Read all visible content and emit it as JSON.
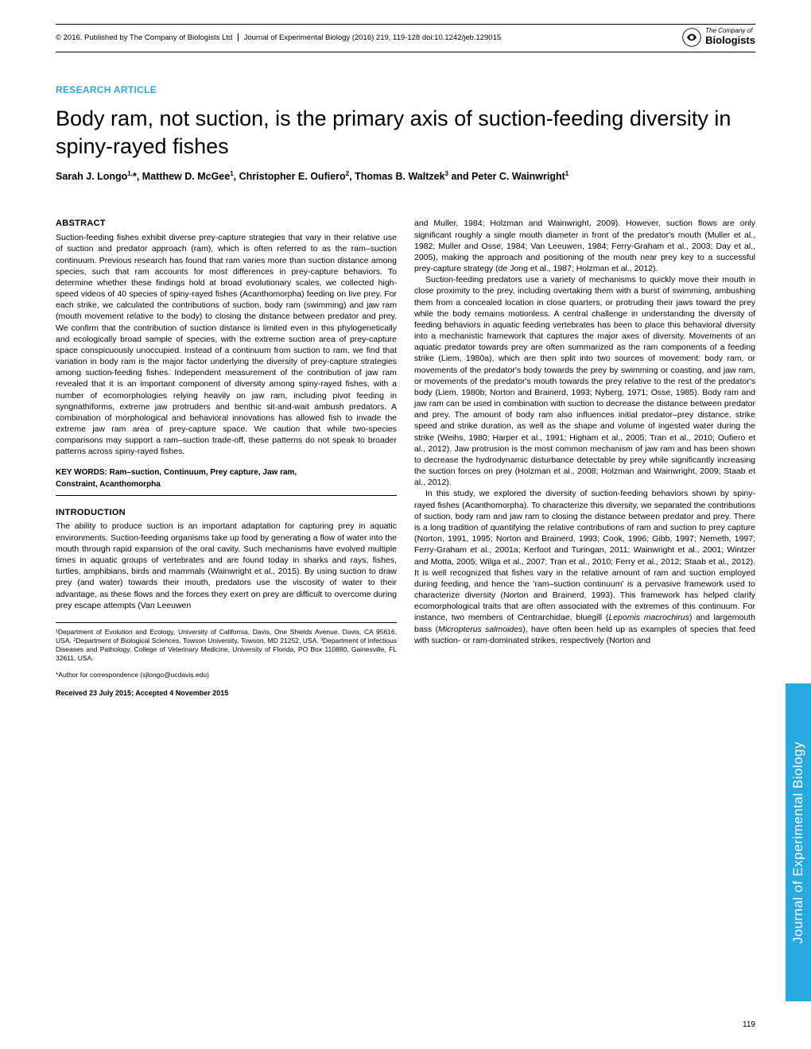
{
  "header": {
    "copyright": "© 2016. Published by The Company of Biologists Ltd",
    "journal": "Journal of Experimental Biology (2016) 219, 119-128 doi:10.1242/jeb.129015",
    "logo_company": "The Company of",
    "logo_biologists": "Biologists"
  },
  "article_type": "RESEARCH ARTICLE",
  "title": "Body ram, not suction, is the primary axis of suction-feeding diversity in spiny-rayed fishes",
  "authors_html": "Sarah J. Longo<sup>1,</sup>*, Matthew D. McGee<sup>1</sup>, Christopher E. Oufiero<sup>2</sup>, Thomas B. Waltzek<sup>3</sup> and Peter C. Wainwright<sup>1</sup>",
  "abstract_head": "ABSTRACT",
  "abstract_text": "Suction-feeding fishes exhibit diverse prey-capture strategies that vary in their relative use of suction and predator approach (ram), which is often referred to as the ram–suction continuum. Previous research has found that ram varies more than suction distance among species, such that ram accounts for most differences in prey-capture behaviors. To determine whether these findings hold at broad evolutionary scales, we collected high-speed videos of 40 species of spiny-rayed fishes (Acanthomorpha) feeding on live prey. For each strike, we calculated the contributions of suction, body ram (swimming) and jaw ram (mouth movement relative to the body) to closing the distance between predator and prey. We confirm that the contribution of suction distance is limited even in this phylogenetically and ecologically broad sample of species, with the extreme suction area of prey-capture space conspicuously unoccupied. Instead of a continuum from suction to ram, we find that variation in body ram is the major factor underlying the diversity of prey-capture strategies among suction-feeding fishes. Independent measurement of the contribution of jaw ram revealed that it is an important component of diversity among spiny-rayed fishes, with a number of ecomorphologies relying heavily on jaw ram, including pivot feeding in syngnathiforms, extreme jaw protruders and benthic sit-and-wait ambush predators. A combination of morphological and behavioral innovations has allowed fish to invade the extreme jaw ram area of prey-capture space. We caution that while two-species comparisons may support a ram–suction trade-off, these patterns do not speak to broader patterns across spiny-rayed fishes.",
  "keywords_line1": "KEY WORDS: Ram–suction, Continuum, Prey capture, Jaw ram,",
  "keywords_line2": "Constraint, Acanthomorpha",
  "intro_head": "INTRODUCTION",
  "intro_para1": "The ability to produce suction is an important adaptation for capturing prey in aquatic environments. Suction-feeding organisms take up food by generating a flow of water into the mouth through rapid expansion of the oral cavity. Such mechanisms have evolved multiple times in aquatic groups of vertebrates and are found today in sharks and rays, fishes, turtles, amphibians, birds and mammals (Wainwright et al., 2015). By using suction to draw prey (and water) towards their mouth, predators use the viscosity of water to their advantage, as these flows and the forces they exert on prey are difficult to overcome during prey escape attempts (Van Leeuwen",
  "affiliations": "¹Department of Evolution and Ecology, University of California, Davis, One Shields Avenue, Davis, CA 95616, USA. ²Department of Biological Sciences, Towson University, Towson, MD 21252, USA. ³Department of Infectious Diseases and Pathology, College of Veterinary Medicine, University of Florida, PO Box 110880, Gainesville, FL 32611, USA.",
  "correspondence": "*Author for correspondence (sjlongo@ucdavis.edu)",
  "received": "Received 23 July 2015; Accepted 4 November 2015",
  "col2_para1": "and Muller, 1984; Holzman and Wainwright, 2009). However, suction flows are only significant roughly a single mouth diameter in front of the predator's mouth (Muller et al., 1982; Muller and Osse, 1984; Van Leeuwen, 1984; Ferry-Graham et al., 2003; Day et al., 2005), making the approach and positioning of the mouth near prey key to a successful prey-capture strategy (de Jong et al., 1987; Holzman et al., 2012).",
  "col2_para2": "Suction-feeding predators use a variety of mechanisms to quickly move their mouth in close proximity to the prey, including overtaking them with a burst of swimming, ambushing them from a concealed location in close quarters, or protruding their jaws toward the prey while the body remains motionless. A central challenge in understanding the diversity of feeding behaviors in aquatic feeding vertebrates has been to place this behavioral diversity into a mechanistic framework that captures the major axes of diversity. Movements of an aquatic predator towards prey are often summarized as the ram components of a feeding strike (Liem, 1980a), which are then split into two sources of movement: body ram, or movements of the predator's body towards the prey by swimming or coasting, and jaw ram, or movements of the predator's mouth towards the prey relative to the rest of the predator's body (Liem, 1980b; Norton and Brainerd, 1993; Nyberg, 1971; Osse, 1985). Body ram and jaw ram can be used in combination with suction to decrease the distance between predator and prey. The amount of body ram also influences initial predator–prey distance, strike speed and strike duration, as well as the shape and volume of ingested water during the strike (Weihs, 1980; Harper et al., 1991; Higham et al., 2005; Tran et al., 2010; Oufiero et al., 2012). Jaw protrusion is the most common mechanism of jaw ram and has been shown to decrease the hydrodynamic disturbance detectable by prey while significantly increasing the suction forces on prey (Holzman et al., 2008; Holzman and Wainwright, 2009; Staab et al., 2012).",
  "col2_para3_html": "In this study, we explored the diversity of suction-feeding behaviors shown by spiny-rayed fishes (Acanthomorpha). To characterize this diversity, we separated the contributions of suction, body ram and jaw ram to closing the distance between predator and prey. There is a long tradition of quantifying the relative contributions of ram and suction to prey capture (Norton, 1991, 1995; Norton and Brainerd, 1993; Cook, 1996; Gibb, 1997; Nemeth, 1997; Ferry-Graham et al., 2001a; Kerfoot and Turingan, 2011; Wainwright et al., 2001; Wintzer and Motta, 2005; Wilga et al., 2007; Tran et al., 2010; Ferry et al., 2012; Staab et al., 2012). It is well recognized that fishes vary in the relative amount of ram and suction employed during feeding, and hence the 'ram–suction continuum' is a pervasive framework used to characterize diversity (Norton and Brainerd, 1993). This framework has helped clarify ecomorphological traits that are often associated with the extremes of this continuum. For instance, two members of Centrarchidae, bluegill (<span class=\"italic\">Lepomis macrochirus</span>) and largemouth bass (<span class=\"italic\">Micropterus salmoides</span>), have often been held up as examples of species that feed with suction- or ram-dominated strikes, respectively (Norton and",
  "side_tab": "Journal of Experimental Biology",
  "page_number": "119",
  "colors": {
    "accent": "#2aa8e0",
    "text": "#000000",
    "background": "#ffffff"
  }
}
